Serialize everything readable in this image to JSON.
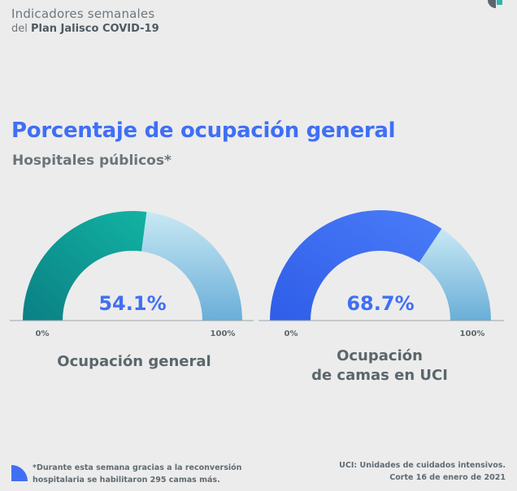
{
  "header": {
    "line1": "Indicadores semanales",
    "line2_prefix": "del ",
    "line2_bold": "Plan Jalisco COVID-19"
  },
  "title": "Porcentaje de ocupación general",
  "subtitle": "Hospitales públicos*",
  "chart_data": [
    {
      "type": "gauge",
      "title": "Ocupación general",
      "value": 54.1,
      "value_label": "54.1%",
      "min_label": "0%",
      "max_label": "100%",
      "range": [
        0,
        100
      ]
    },
    {
      "type": "gauge",
      "title": "Ocupación de camas en UCI",
      "title_lines": [
        "Ocupación",
        "de camas en UCI"
      ],
      "value": 68.7,
      "value_label": "68.7%",
      "min_label": "0%",
      "max_label": "100%",
      "range": [
        0,
        100
      ]
    }
  ],
  "colors": {
    "gauge1_fill_start": "#0b7f84",
    "gauge1_fill_end": "#12b3a3",
    "gauge2_fill_start": "#2f5de8",
    "gauge2_fill_end": "#4a7cf8",
    "remainder_start": "#c8e8f4",
    "remainder_end": "#6aaed8",
    "value_text": "#3f6ff5"
  },
  "footnotes": {
    "left_line1": "*Durante esta semana gracias a la reconversión",
    "left_line2": "hospitalaria se habilitaron 295 camas más.",
    "right_line1": "UCI: Unidades de cuidados intensivos.",
    "right_line2": "Corte 16 de enero de 2021"
  }
}
